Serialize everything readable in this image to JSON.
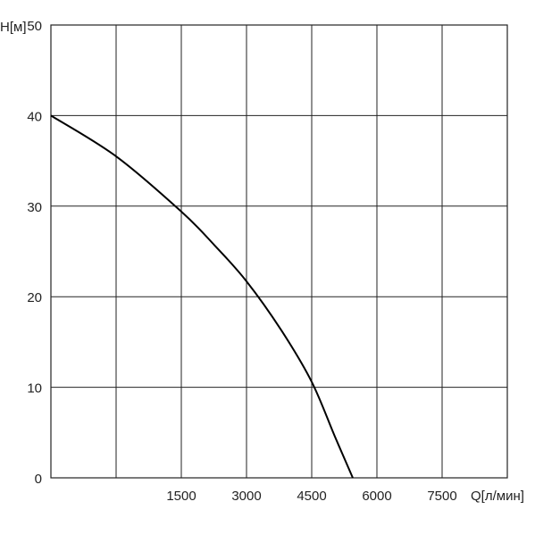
{
  "chart_data": {
    "type": "line",
    "y_label": "Н[м]",
    "x_label": "Q[л/мин]",
    "x": [
      -1500,
      0,
      1500,
      2260,
      3000,
      3800,
      4500,
      5030,
      5445
    ],
    "series": [
      {
        "color": "#000000",
        "values": [
          40,
          35.5,
          29.4,
          25.7,
          21.7,
          16.3,
          10.6,
          4.6,
          0
        ]
      }
    ],
    "xlim": [
      -1500,
      9000
    ],
    "xticks": [
      {
        "value": 0,
        "label": null
      },
      1500,
      3000,
      4500,
      6000,
      7500
    ],
    "ylim": [
      0,
      50
    ],
    "yticks": [
      0,
      10,
      20,
      30,
      40,
      50
    ],
    "grid": true
  }
}
